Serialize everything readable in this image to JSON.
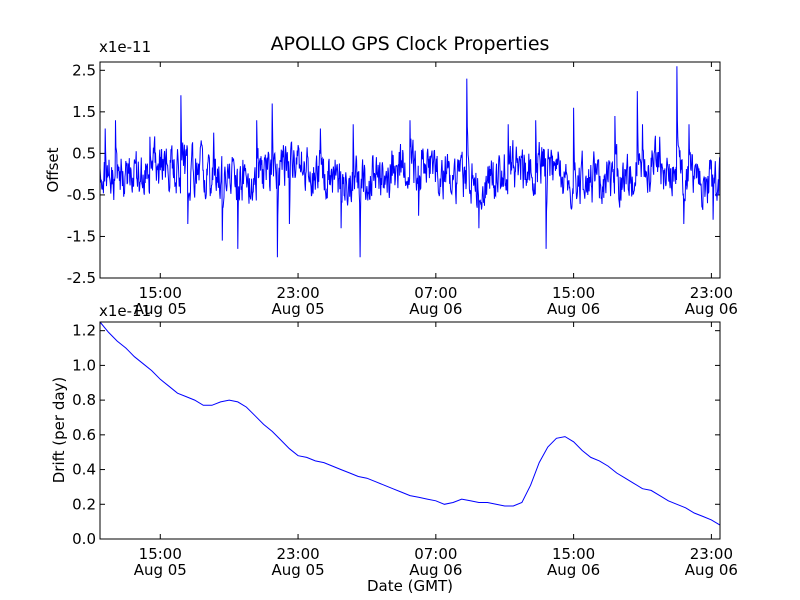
{
  "chart_data": [
    {
      "type": "line",
      "title": "APOLLO GPS Clock Properties",
      "ylabel": "Offset",
      "xlabel": "",
      "offset_text": "x1e-11",
      "ylim": [
        -2.5,
        2.7
      ],
      "yticks": [
        {
          "value": 2.5,
          "label": "2.5"
        },
        {
          "value": 1.5,
          "label": "1.5"
        },
        {
          "value": 0.5,
          "label": "0.5"
        },
        {
          "value": -0.5,
          "label": "-0.5"
        },
        {
          "value": -1.5,
          "label": "-1.5"
        },
        {
          "value": -2.5,
          "label": "-2.5"
        }
      ],
      "xlim_hours": [
        11.5,
        47.5
      ],
      "xticks": [
        {
          "hour": 15,
          "time": "15:00",
          "date": "Aug 05"
        },
        {
          "hour": 23,
          "time": "23:00",
          "date": "Aug 05"
        },
        {
          "hour": 31,
          "time": "07:00",
          "date": "Aug 06"
        },
        {
          "hour": 39,
          "time": "15:00",
          "date": "Aug 06"
        },
        {
          "hour": 47,
          "time": "23:00",
          "date": "Aug 06"
        }
      ],
      "series": [
        {
          "color": "#0000ff",
          "samples_per_hour": 4,
          "noise_amplitude": 0.45,
          "spikes": [
            [
              11.8,
              1.1
            ],
            [
              12.4,
              1.3
            ],
            [
              14.4,
              0.9
            ],
            [
              16.2,
              1.9
            ],
            [
              16.6,
              -1.2
            ],
            [
              18.1,
              1.0
            ],
            [
              18.6,
              -1.6
            ],
            [
              19.5,
              -1.8
            ],
            [
              20.6,
              1.3
            ],
            [
              21.5,
              1.7
            ],
            [
              21.8,
              -2.0
            ],
            [
              22.5,
              -1.2
            ],
            [
              24.3,
              1.1
            ],
            [
              25.5,
              -1.3
            ],
            [
              26.6,
              -2.0
            ],
            [
              26.2,
              1.2
            ],
            [
              29.5,
              1.3
            ],
            [
              30.0,
              -1.0
            ],
            [
              32.8,
              2.3
            ],
            [
              33.5,
              -1.3
            ],
            [
              35.2,
              1.2
            ],
            [
              36.8,
              1.3
            ],
            [
              37.4,
              -1.8
            ],
            [
              39.0,
              1.6
            ],
            [
              41.4,
              1.4
            ],
            [
              42.7,
              2.0
            ],
            [
              43.0,
              1.2
            ],
            [
              44.0,
              0.9
            ],
            [
              45.0,
              2.6
            ],
            [
              45.4,
              -1.2
            ],
            [
              45.7,
              1.2
            ],
            [
              47.1,
              -1.1
            ]
          ]
        }
      ]
    },
    {
      "type": "line",
      "title": "",
      "ylabel": "Drift (per day)",
      "xlabel": "Date (GMT)",
      "offset_text": "x1e-11",
      "ylim": [
        0.0,
        1.25
      ],
      "yticks": [
        {
          "value": 1.2,
          "label": "1.2"
        },
        {
          "value": 1.0,
          "label": "1.0"
        },
        {
          "value": 0.8,
          "label": "0.8"
        },
        {
          "value": 0.6,
          "label": "0.6"
        },
        {
          "value": 0.4,
          "label": "0.4"
        },
        {
          "value": 0.2,
          "label": "0.2"
        },
        {
          "value": 0.0,
          "label": "0.0"
        }
      ],
      "xlim_hours": [
        11.5,
        47.5
      ],
      "xticks": [
        {
          "hour": 15,
          "time": "15:00",
          "date": "Aug 05"
        },
        {
          "hour": 23,
          "time": "23:00",
          "date": "Aug 05"
        },
        {
          "hour": 31,
          "time": "07:00",
          "date": "Aug 06"
        },
        {
          "hour": 39,
          "time": "15:00",
          "date": "Aug 06"
        },
        {
          "hour": 47,
          "time": "23:00",
          "date": "Aug 06"
        }
      ],
      "series": [
        {
          "color": "#0000ff",
          "hours": [
            11.5,
            12.0,
            12.5,
            13.0,
            13.5,
            14.0,
            14.5,
            15.0,
            15.5,
            16.0,
            16.5,
            17.0,
            17.5,
            18.0,
            18.5,
            19.0,
            19.5,
            20.0,
            20.5,
            21.0,
            21.5,
            22.0,
            22.5,
            23.0,
            23.5,
            24.0,
            24.5,
            25.0,
            25.5,
            26.0,
            26.5,
            27.0,
            27.5,
            28.0,
            28.5,
            29.0,
            29.5,
            30.0,
            30.5,
            31.0,
            31.5,
            32.0,
            32.5,
            33.0,
            33.5,
            34.0,
            34.5,
            35.0,
            35.5,
            36.0,
            36.5,
            37.0,
            37.5,
            38.0,
            38.5,
            39.0,
            39.5,
            40.0,
            40.5,
            41.0,
            41.5,
            42.0,
            42.5,
            43.0,
            43.5,
            44.0,
            44.5,
            45.0,
            45.5,
            46.0,
            46.5,
            47.0,
            47.5
          ],
          "values": [
            1.25,
            1.19,
            1.14,
            1.1,
            1.05,
            1.01,
            0.97,
            0.92,
            0.88,
            0.84,
            0.82,
            0.8,
            0.77,
            0.77,
            0.79,
            0.8,
            0.79,
            0.76,
            0.71,
            0.66,
            0.62,
            0.57,
            0.52,
            0.48,
            0.47,
            0.45,
            0.44,
            0.42,
            0.4,
            0.38,
            0.36,
            0.35,
            0.33,
            0.31,
            0.29,
            0.27,
            0.25,
            0.24,
            0.23,
            0.22,
            0.2,
            0.21,
            0.23,
            0.22,
            0.21,
            0.21,
            0.2,
            0.19,
            0.19,
            0.21,
            0.31,
            0.44,
            0.53,
            0.58,
            0.59,
            0.56,
            0.51,
            0.47,
            0.45,
            0.42,
            0.38,
            0.35,
            0.32,
            0.29,
            0.28,
            0.25,
            0.22,
            0.2,
            0.18,
            0.15,
            0.13,
            0.11,
            0.08
          ]
        }
      ]
    }
  ]
}
